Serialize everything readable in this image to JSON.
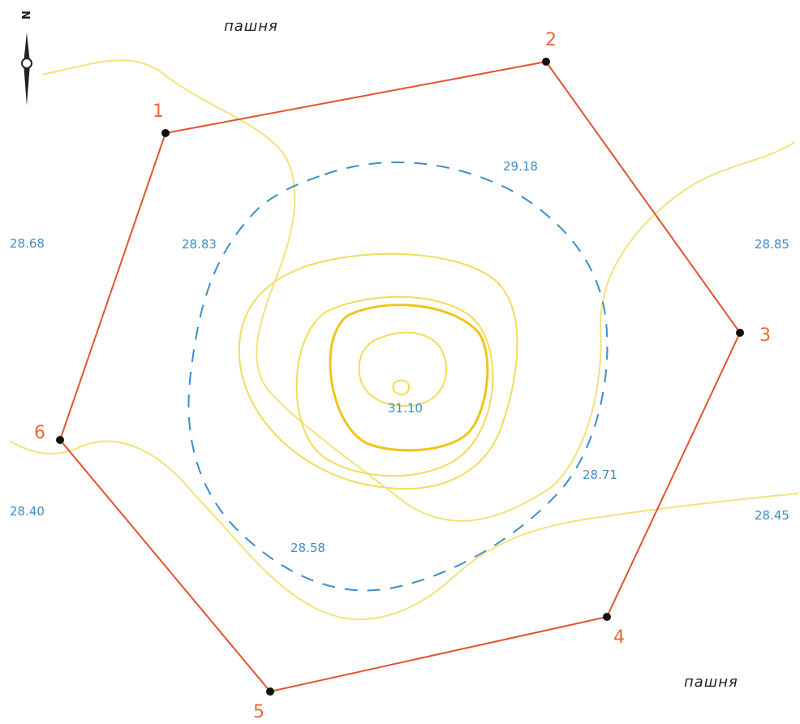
{
  "north_arrow": {
    "letter": "N"
  },
  "land_use": [
    {
      "id": "top",
      "text": "пашня"
    },
    {
      "id": "bottom",
      "text": "пашня"
    }
  ],
  "boundary_points": [
    {
      "id": "1",
      "label": "1"
    },
    {
      "id": "2",
      "label": "2"
    },
    {
      "id": "3",
      "label": "3"
    },
    {
      "id": "4",
      "label": "4"
    },
    {
      "id": "5",
      "label": "5"
    },
    {
      "id": "6",
      "label": "6"
    }
  ],
  "elevations": [
    {
      "id": "e1",
      "text": "29.18"
    },
    {
      "id": "e2",
      "text": "28.83"
    },
    {
      "id": "e3",
      "text": "28.68"
    },
    {
      "id": "e4",
      "text": "28.85"
    },
    {
      "id": "e5",
      "text": "31.10"
    },
    {
      "id": "e6",
      "text": "28.71"
    },
    {
      "id": "e7",
      "text": "28.58"
    },
    {
      "id": "e8",
      "text": "28.40"
    },
    {
      "id": "e9",
      "text": "28.45"
    }
  ],
  "colors": {
    "boundary": "#e2532f",
    "contour": "#f2dc58",
    "contour_bold": "#f0c419",
    "dashed_contour": "#3b8fc6",
    "elevation_text": "#3b8fc6",
    "vertex_text": "#e86a3a"
  }
}
